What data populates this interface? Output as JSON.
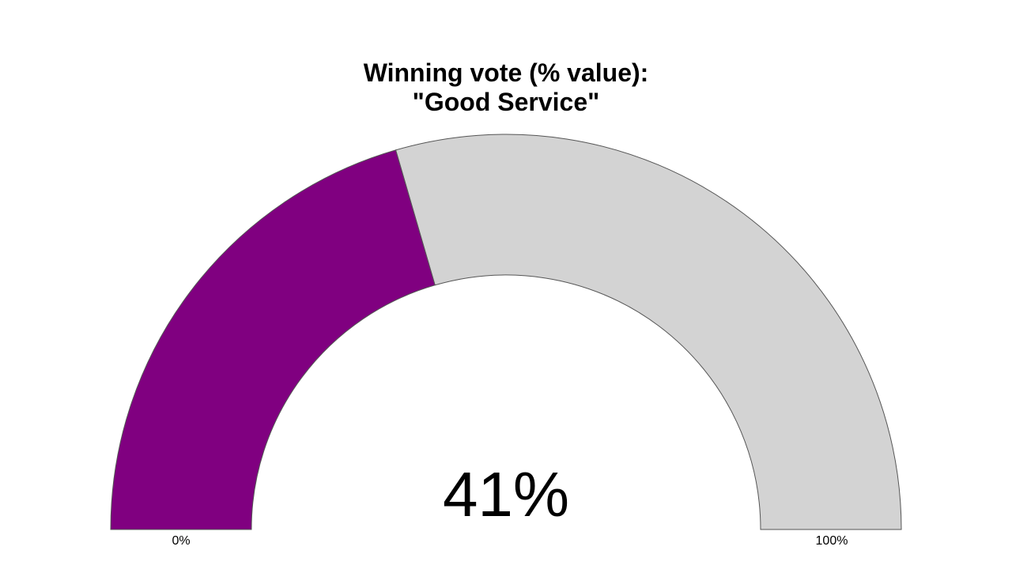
{
  "chart_data": {
    "type": "gauge",
    "title_lines": [
      "Winning vote (% value):",
      "\"Good Service\""
    ],
    "value": 41,
    "value_label": "41%",
    "min": 0,
    "max": 100,
    "min_label": "0%",
    "max_label": "100%",
    "colors": {
      "fill": "#800080",
      "remainder": "#d3d3d3",
      "outline": "#555555"
    }
  }
}
